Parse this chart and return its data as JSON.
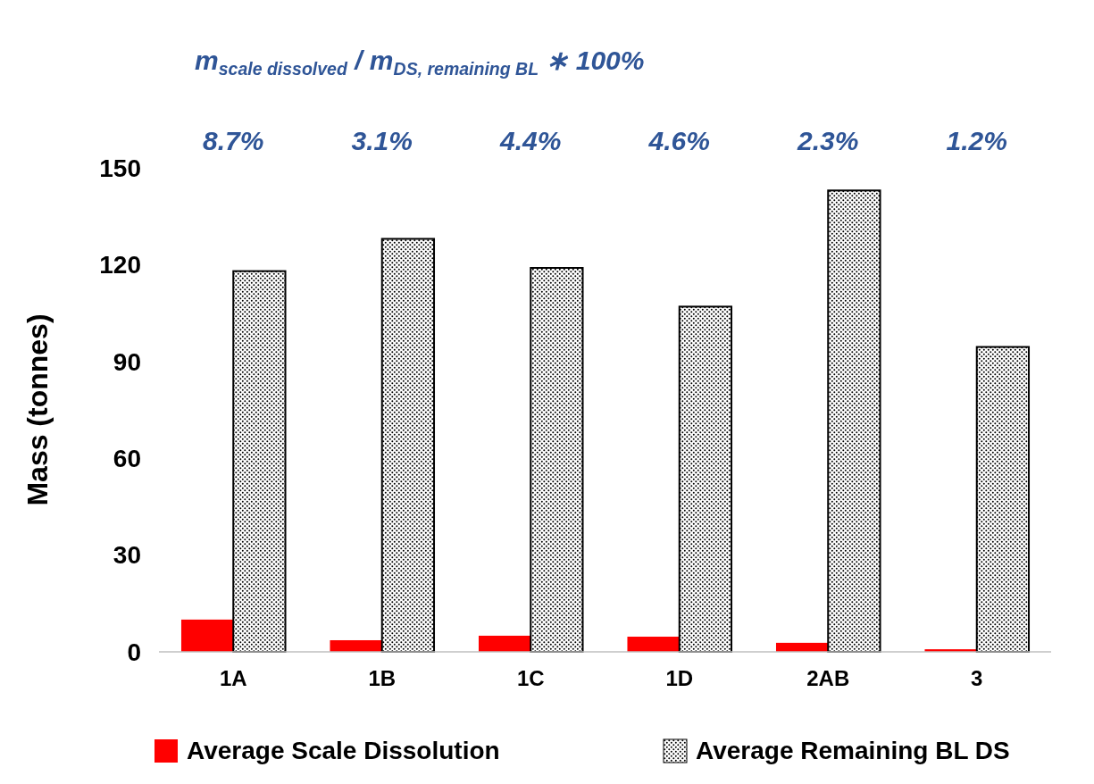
{
  "chart_data": {
    "type": "bar",
    "ylabel": "Mass (tonnes)",
    "categories": [
      "1A",
      "1B",
      "1C",
      "1D",
      "2AB",
      "3"
    ],
    "series": [
      {
        "name": "Average Scale Dissolution",
        "color": "#ff0000",
        "values": [
          10,
          3.6,
          5,
          4.7,
          2.8,
          0.8
        ]
      },
      {
        "name": "Average Remaining BL DS",
        "color": "#000000",
        "values": [
          118,
          128,
          119,
          107,
          143,
          94.5
        ]
      }
    ],
    "ylim": [
      0,
      150
    ],
    "yticks": [
      0,
      30,
      60,
      90,
      120,
      150
    ],
    "grid": false,
    "legend": "bottom",
    "annotations": [
      "m$_{scale dissolved}$ / m$_{DS, remaining BL}$ ∗ 100%",
      "8.7%",
      "3.1%",
      "4.4%",
      "4.6%",
      "2.3%",
      "1.2%"
    ]
  }
}
